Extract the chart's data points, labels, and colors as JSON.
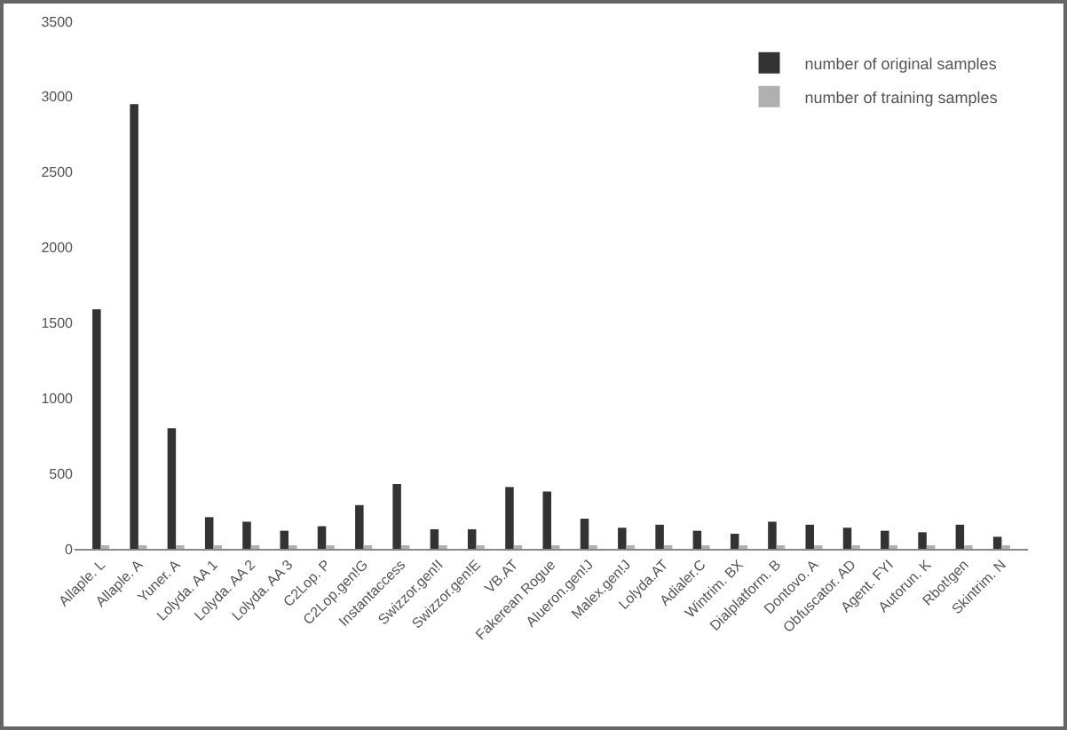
{
  "chart_data": {
    "type": "bar",
    "categories": [
      "Allaple. L",
      "Allaple. A",
      "Yuner. A",
      "Lolyda. AA 1",
      "Lolyda. AA 2",
      "Lolyda. AA 3",
      "C2Lop. P",
      "C2Lop.gen!G",
      "Instantaccess",
      "Swizzor.gen!I",
      "Swizzor.gen!E",
      "VB.AT",
      "Fakerean Rogue",
      "Alueron.gen!J",
      "Malex.gen!J",
      "Lolyda.AT",
      "Adialer.C",
      "Wintrim. BX",
      "Dialplatform. B",
      "Dontovo. A",
      "Obfuscator. AD",
      "Agent. FYI",
      "Autorun. K",
      "Rbot!gen",
      "Skintrim. N"
    ],
    "series": [
      {
        "name": "number of original samples",
        "color": "#333333",
        "values": [
          1590,
          2950,
          800,
          210,
          180,
          120,
          150,
          290,
          430,
          130,
          130,
          410,
          380,
          200,
          140,
          160,
          120,
          100,
          180,
          160,
          140,
          120,
          110,
          160,
          80
        ]
      },
      {
        "name": "number of training samples",
        "color": "#b0b0b0",
        "values": [
          20,
          20,
          20,
          20,
          20,
          20,
          20,
          20,
          20,
          20,
          20,
          20,
          20,
          20,
          20,
          20,
          20,
          20,
          20,
          20,
          20,
          20,
          20,
          20,
          20
        ]
      }
    ],
    "ylim": [
      0,
      3500
    ],
    "yticks": [
      0,
      500,
      1000,
      1500,
      2000,
      2500,
      3000,
      3500
    ],
    "grid": false,
    "legend": "top right"
  }
}
